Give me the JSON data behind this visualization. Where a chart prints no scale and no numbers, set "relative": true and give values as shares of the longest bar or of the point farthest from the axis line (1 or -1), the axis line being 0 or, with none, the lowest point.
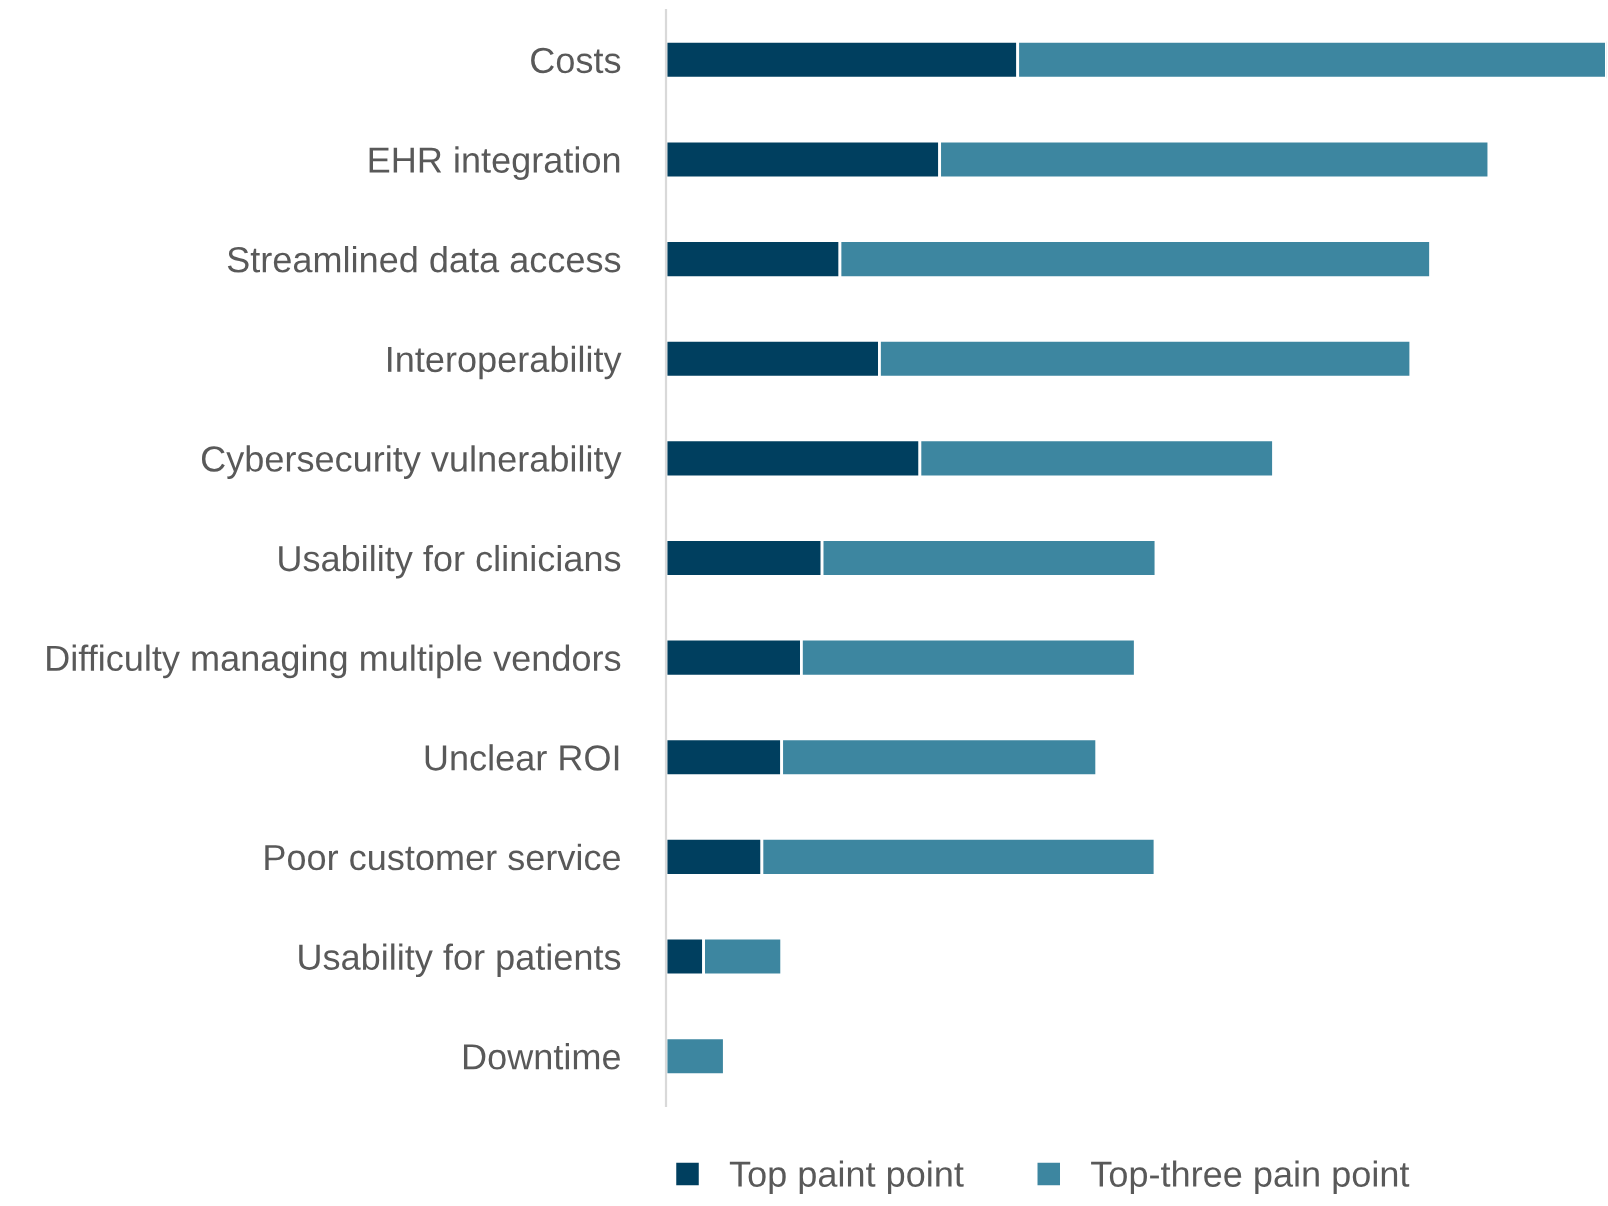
{
  "chart_data": {
    "type": "bar",
    "orientation": "horizontal",
    "stacked": true,
    "relative": true,
    "categories": [
      "Costs",
      "EHR integration",
      "Streamlined data access",
      "Interoperability",
      "Cybersecurity vulnerability",
      "Usability for clinicians",
      "Difficulty managing multiple vendors",
      "Unclear ROI",
      "Poor customer service",
      "Usability for patients",
      "Downtime"
    ],
    "series": [
      {
        "name": "Top paint point",
        "color": "#003f5f",
        "values": [
          0.374,
          0.291,
          0.185,
          0.227,
          0.27,
          0.166,
          0.144,
          0.123,
          0.102,
          0.04,
          0
        ]
      },
      {
        "name": "Top-three pain point",
        "color": "#3d86a0",
        "values": [
          0.626,
          0.584,
          0.628,
          0.565,
          0.376,
          0.355,
          0.355,
          0.335,
          0.418,
          0.083,
          0.062
        ]
      }
    ],
    "legend": "bottom",
    "grid": false
  }
}
